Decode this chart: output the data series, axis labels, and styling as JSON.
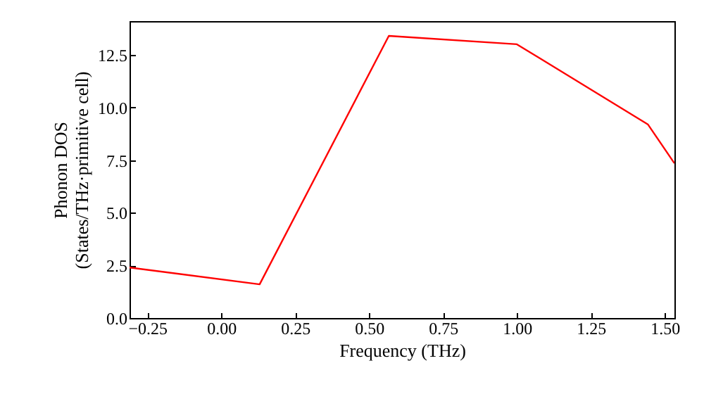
{
  "chart_data": {
    "type": "line",
    "xlabel": "Frequency (THz)",
    "ylabel": "Phonon DOS\n(States/THz·primitive cell)",
    "x": [
      -0.31,
      0.13,
      0.567,
      1.0,
      1.443,
      1.533
    ],
    "series": [
      {
        "color": "#ff0000",
        "values": [
          2.4,
          1.6,
          13.4,
          13.0,
          9.2,
          7.35
        ]
      }
    ],
    "xlim": [
      -0.31,
      1.533
    ],
    "ylim": [
      0,
      14.1
    ],
    "xticks": [
      {
        "value": -0.25,
        "label": "−0.25"
      },
      {
        "value": 0,
        "label": "0.00"
      },
      {
        "value": 0.25,
        "label": "0.25"
      },
      {
        "value": 0.5,
        "label": "0.50"
      },
      {
        "value": 0.75,
        "label": "0.75"
      },
      {
        "value": 1,
        "label": "1.00"
      },
      {
        "value": 1.25,
        "label": "1.25"
      },
      {
        "value": 1.5,
        "label": "1.50"
      }
    ],
    "yticks": [
      {
        "value": 0,
        "label": "0.0"
      },
      {
        "value": 2.5,
        "label": "2.5"
      },
      {
        "value": 5,
        "label": "5.0"
      },
      {
        "value": 7.5,
        "label": "7.5"
      },
      {
        "value": 10,
        "label": "10.0"
      },
      {
        "value": 12.5,
        "label": "12.5"
      }
    ],
    "grid": false
  }
}
